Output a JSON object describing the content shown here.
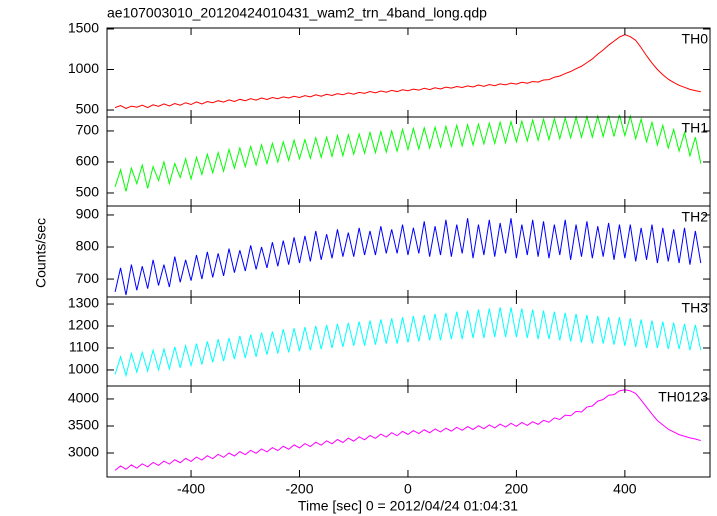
{
  "chart_data": {
    "type": "line",
    "title": "ae107003010_20120424010431_wam2_trn_4band_long.qdp",
    "xlabel": "Time [sec] 0 = 2012/04/24 01:04:31",
    "ylabel": "Counts/sec",
    "xlim": [
      -555,
      557
    ],
    "xticks": [
      -400,
      -200,
      0,
      200,
      400
    ],
    "x": [
      -540,
      -530,
      -520,
      -510,
      -500,
      -490,
      -480,
      -470,
      -460,
      -450,
      -440,
      -430,
      -420,
      -410,
      -400,
      -390,
      -380,
      -370,
      -360,
      -350,
      -340,
      -330,
      -320,
      -310,
      -300,
      -290,
      -280,
      -270,
      -260,
      -250,
      -240,
      -230,
      -220,
      -210,
      -200,
      -190,
      -180,
      -170,
      -160,
      -150,
      -140,
      -130,
      -120,
      -110,
      -100,
      -90,
      -80,
      -70,
      -60,
      -50,
      -40,
      -30,
      -20,
      -10,
      0,
      10,
      20,
      30,
      40,
      50,
      60,
      70,
      80,
      90,
      100,
      110,
      120,
      130,
      140,
      150,
      160,
      170,
      180,
      190,
      200,
      210,
      220,
      230,
      240,
      250,
      260,
      270,
      280,
      290,
      300,
      310,
      320,
      330,
      340,
      350,
      360,
      370,
      380,
      390,
      400,
      410,
      420,
      430,
      440,
      450,
      460,
      470,
      480,
      490,
      500,
      510,
      520,
      530,
      540
    ],
    "panels": [
      {
        "ylim": [
          414,
          1512
        ],
        "yticks": [
          500,
          1000,
          1500
        ],
        "series": [
          {
            "name": "TH0",
            "color": "#ff0000",
            "values": [
              530,
              555,
              520,
              548,
              535,
              560,
              530,
              565,
              545,
              575,
              550,
              580,
              560,
              590,
              568,
              600,
              575,
              605,
              590,
              615,
              598,
              625,
              605,
              632,
              615,
              640,
              622,
              648,
              630,
              655,
              640,
              662,
              648,
              670,
              655,
              678,
              662,
              688,
              670,
              695,
              680,
              702,
              688,
              712,
              695,
              718,
              705,
              728,
              712,
              735,
              720,
              742,
              728,
              750,
              738,
              758,
              745,
              768,
              752,
              775,
              760,
              782,
              770,
              790,
              778,
              798,
              785,
              808,
              792,
              815,
              800,
              822,
              810,
              832,
              820,
              842,
              830,
              852,
              845,
              870,
              875,
              905,
              920,
              950,
              975,
              1010,
              1040,
              1085,
              1130,
              1190,
              1240,
              1300,
              1350,
              1400,
              1430,
              1405,
              1360,
              1270,
              1170,
              1080,
              1000,
              935,
              880,
              840,
              805,
              780,
              755,
              740,
              725
            ]
          }
        ]
      },
      {
        "ylim": [
          458,
          745
        ],
        "yticks": [
          500,
          600,
          700
        ],
        "series": [
          {
            "name": "TH1",
            "color": "#00ff00",
            "values": [
              520,
              575,
              505,
              580,
              530,
              590,
              515,
              585,
              540,
              600,
              530,
              595,
              550,
              610,
              545,
              615,
              560,
              625,
              565,
              630,
              570,
              640,
              580,
              645,
              585,
              650,
              590,
              655,
              595,
              660,
              600,
              665,
              605,
              670,
              610,
              672,
              612,
              678,
              615,
              680,
              618,
              685,
              620,
              688,
              625,
              690,
              628,
              695,
              630,
              698,
              632,
              700,
              635,
              705,
              640,
              708,
              642,
              710,
              645,
              712,
              648,
              715,
              650,
              718,
              652,
              720,
              655,
              722,
              658,
              725,
              660,
              728,
              662,
              730,
              665,
              732,
              668,
              735,
              670,
              738,
              672,
              740,
              675,
              742,
              678,
              745,
              680,
              746,
              680,
              748,
              682,
              750,
              682,
              752,
              685,
              748,
              675,
              738,
              665,
              728,
              655,
              718,
              645,
              705,
              635,
              695,
              620,
              680,
              595
            ]
          }
        ]
      },
      {
        "ylim": [
          644,
          928
        ],
        "yticks": [
          700,
          800,
          900
        ],
        "series": [
          {
            "name": "TH2",
            "color": "#0000ff",
            "values": [
              660,
              735,
              650,
              745,
              665,
              740,
              670,
              760,
              680,
              745,
              675,
              770,
              690,
              760,
              695,
              775,
              700,
              785,
              705,
              780,
              710,
              795,
              720,
              790,
              725,
              805,
              730,
              800,
              735,
              815,
              740,
              820,
              745,
              830,
              750,
              835,
              755,
              850,
              760,
              840,
              765,
              855,
              770,
              845,
              770,
              860,
              775,
              850,
              775,
              865,
              780,
              855,
              780,
              870,
              775,
              860,
              780,
              880,
              770,
              865,
              775,
              885,
              770,
              870,
              780,
              890,
              765,
              870,
              775,
              885,
              770,
              875,
              780,
              890,
              765,
              870,
              775,
              885,
              770,
              880,
              765,
              870,
              775,
              885,
              760,
              870,
              770,
              880,
              765,
              865,
              770,
              875,
              760,
              870,
              765,
              870,
              755,
              860,
              760,
              870,
              750,
              860,
              755,
              855,
              750,
              860,
              745,
              850,
              750
            ]
          }
        ]
      },
      {
        "ylim": [
          927,
          1332
        ],
        "yticks": [
          1000,
          1100,
          1200,
          1300
        ],
        "series": [
          {
            "name": "TH3",
            "color": "#00ffff",
            "values": [
              980,
              1060,
              975,
              1075,
              990,
              1080,
              995,
              1090,
              1000,
              1095,
              1005,
              1105,
              1010,
              1110,
              1020,
              1120,
              1025,
              1130,
              1035,
              1140,
              1040,
              1145,
              1050,
              1155,
              1055,
              1160,
              1060,
              1170,
              1070,
              1175,
              1075,
              1185,
              1080,
              1190,
              1085,
              1195,
              1090,
              1200,
              1095,
              1205,
              1100,
              1210,
              1105,
              1215,
              1110,
              1220,
              1110,
              1225,
              1115,
              1230,
              1120,
              1235,
              1120,
              1240,
              1125,
              1245,
              1130,
              1250,
              1135,
              1255,
              1135,
              1260,
              1140,
              1265,
              1140,
              1270,
              1145,
              1275,
              1145,
              1280,
              1150,
              1285,
              1150,
              1285,
              1150,
              1280,
              1145,
              1275,
              1140,
              1270,
              1140,
              1265,
              1135,
              1260,
              1130,
              1255,
              1125,
              1250,
              1120,
              1245,
              1120,
              1240,
              1115,
              1240,
              1110,
              1235,
              1105,
              1230,
              1100,
              1225,
              1100,
              1220,
              1095,
              1215,
              1095,
              1210,
              1090,
              1205,
              1090
            ]
          }
        ]
      },
      {
        "ylim": [
          2556,
          4240
        ],
        "yticks": [
          3000,
          3500,
          4000
        ],
        "series": [
          {
            "name": "TH0123",
            "color": "#ff00ff",
            "values": [
              2680,
              2760,
              2700,
              2780,
              2720,
              2800,
              2745,
              2825,
              2770,
              2850,
              2795,
              2875,
              2820,
              2900,
              2845,
              2925,
              2870,
              2950,
              2895,
              2975,
              2920,
              3000,
              2945,
              3025,
              2970,
              3050,
              2995,
              3075,
              3020,
              3100,
              3045,
              3125,
              3070,
              3150,
              3095,
              3175,
              3120,
              3200,
              3145,
              3225,
              3170,
              3250,
              3195,
              3275,
              3220,
              3300,
              3245,
              3325,
              3270,
              3350,
              3295,
              3375,
              3320,
              3400,
              3345,
              3415,
              3360,
              3430,
              3375,
              3445,
              3390,
              3460,
              3405,
              3475,
              3420,
              3490,
              3435,
              3505,
              3450,
              3520,
              3465,
              3535,
              3480,
              3550,
              3495,
              3565,
              3510,
              3580,
              3530,
              3605,
              3570,
              3650,
              3620,
              3700,
              3690,
              3770,
              3760,
              3850,
              3870,
              3960,
              3990,
              4070,
              4080,
              4150,
              4170,
              4150,
              4100,
              3980,
              3850,
              3720,
              3600,
              3520,
              3440,
              3390,
              3340,
              3310,
              3280,
              3260,
              3230
            ]
          }
        ]
      }
    ]
  }
}
